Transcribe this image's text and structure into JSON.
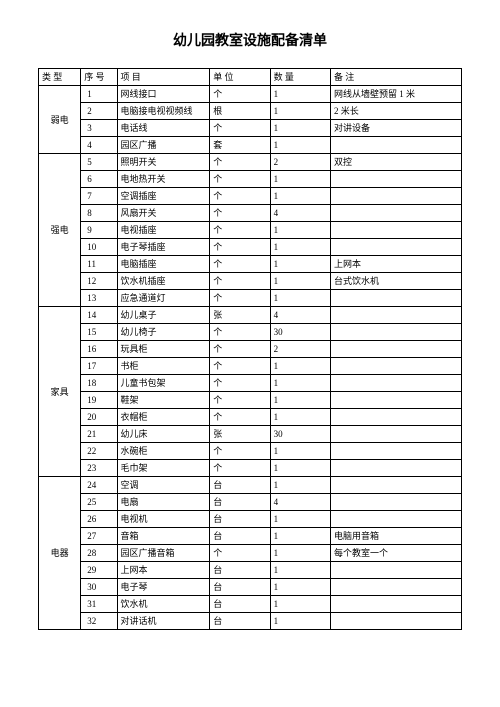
{
  "title": "幼儿园教室设施配备清单",
  "headers": {
    "type": "类 型",
    "seq": "序 号",
    "item": "项 目",
    "unit": "单 位",
    "qty": "数 量",
    "note": "备 注"
  },
  "rows": [
    {
      "cat": "弱电",
      "catSpan": 4,
      "seq": "1",
      "item": "网线接口",
      "unit": "个",
      "qty": "1",
      "note": "网线从墙壁预留 1 米"
    },
    {
      "seq": "2",
      "item": "电脑接电视视频线",
      "unit": "根",
      "qty": "1",
      "note": "2 米长"
    },
    {
      "seq": "3",
      "item": "电话线",
      "unit": "个",
      "qty": "1",
      "note": "对讲设备"
    },
    {
      "seq": "4",
      "item": "园区广播",
      "unit": "套",
      "qty": "1",
      "note": ""
    },
    {
      "cat": "强电",
      "catSpan": 9,
      "seq": "5",
      "item": "照明开关",
      "unit": "个",
      "qty": "2",
      "note": "双控"
    },
    {
      "seq": "6",
      "item": "电地热开关",
      "unit": "个",
      "qty": "1",
      "note": ""
    },
    {
      "seq": "7",
      "item": "空调插座",
      "unit": "个",
      "qty": "1",
      "note": ""
    },
    {
      "seq": "8",
      "item": "风扇开关",
      "unit": "个",
      "qty": "4",
      "note": ""
    },
    {
      "seq": "9",
      "item": "电视插座",
      "unit": "个",
      "qty": "1",
      "note": ""
    },
    {
      "seq": "10",
      "item": "电子琴插座",
      "unit": "个",
      "qty": "1",
      "note": ""
    },
    {
      "seq": "11",
      "item": "电脑插座",
      "unit": "个",
      "qty": "1",
      "note": "上网本"
    },
    {
      "seq": "12",
      "item": "饮水机插座",
      "unit": "个",
      "qty": "1",
      "note": "台式饮水机"
    },
    {
      "seq": "13",
      "item": "应急通道灯",
      "unit": "个",
      "qty": "1",
      "note": ""
    },
    {
      "cat": "家具",
      "catSpan": 10,
      "seq": "14",
      "item": "幼儿桌子",
      "unit": "张",
      "qty": "4",
      "note": ""
    },
    {
      "seq": "15",
      "item": "幼儿椅子",
      "unit": "个",
      "qty": "30",
      "note": ""
    },
    {
      "seq": "16",
      "item": "玩具柜",
      "unit": "个",
      "qty": "2",
      "note": ""
    },
    {
      "seq": "17",
      "item": "书柜",
      "unit": "个",
      "qty": "1",
      "note": ""
    },
    {
      "seq": "18",
      "item": "儿童书包架",
      "unit": "个",
      "qty": "1",
      "note": ""
    },
    {
      "seq": "19",
      "item": "鞋架",
      "unit": "个",
      "qty": "1",
      "note": ""
    },
    {
      "seq": "20",
      "item": "衣帽柜",
      "unit": "个",
      "qty": "1",
      "note": ""
    },
    {
      "seq": "21",
      "item": "幼儿床",
      "unit": "张",
      "qty": "30",
      "note": ""
    },
    {
      "seq": "22",
      "item": "水碗柜",
      "unit": "个",
      "qty": "1",
      "note": ""
    },
    {
      "seq": "23",
      "item": "毛巾架",
      "unit": "个",
      "qty": "1",
      "note": ""
    },
    {
      "cat": "电器",
      "catSpan": 9,
      "seq": "24",
      "item": "空调",
      "unit": "台",
      "qty": "1",
      "note": ""
    },
    {
      "seq": "25",
      "item": "电扇",
      "unit": "台",
      "qty": "4",
      "note": ""
    },
    {
      "seq": "26",
      "item": "电视机",
      "unit": "台",
      "qty": "1",
      "note": ""
    },
    {
      "seq": "27",
      "item": "音箱",
      "unit": "台",
      "qty": "1",
      "note": "电脑用音箱"
    },
    {
      "seq": "28",
      "item": "园区广播音箱",
      "unit": "个",
      "qty": "1",
      "note": "每个教室一个"
    },
    {
      "seq": "29",
      "item": "上网本",
      "unit": "台",
      "qty": "1",
      "note": ""
    },
    {
      "seq": "30",
      "item": "电子琴",
      "unit": "台",
      "qty": "1",
      "note": ""
    },
    {
      "seq": "31",
      "item": "饮水机",
      "unit": "台",
      "qty": "1",
      "note": ""
    },
    {
      "seq": "32",
      "item": "对讲话机",
      "unit": "台",
      "qty": "1",
      "note": ""
    }
  ]
}
